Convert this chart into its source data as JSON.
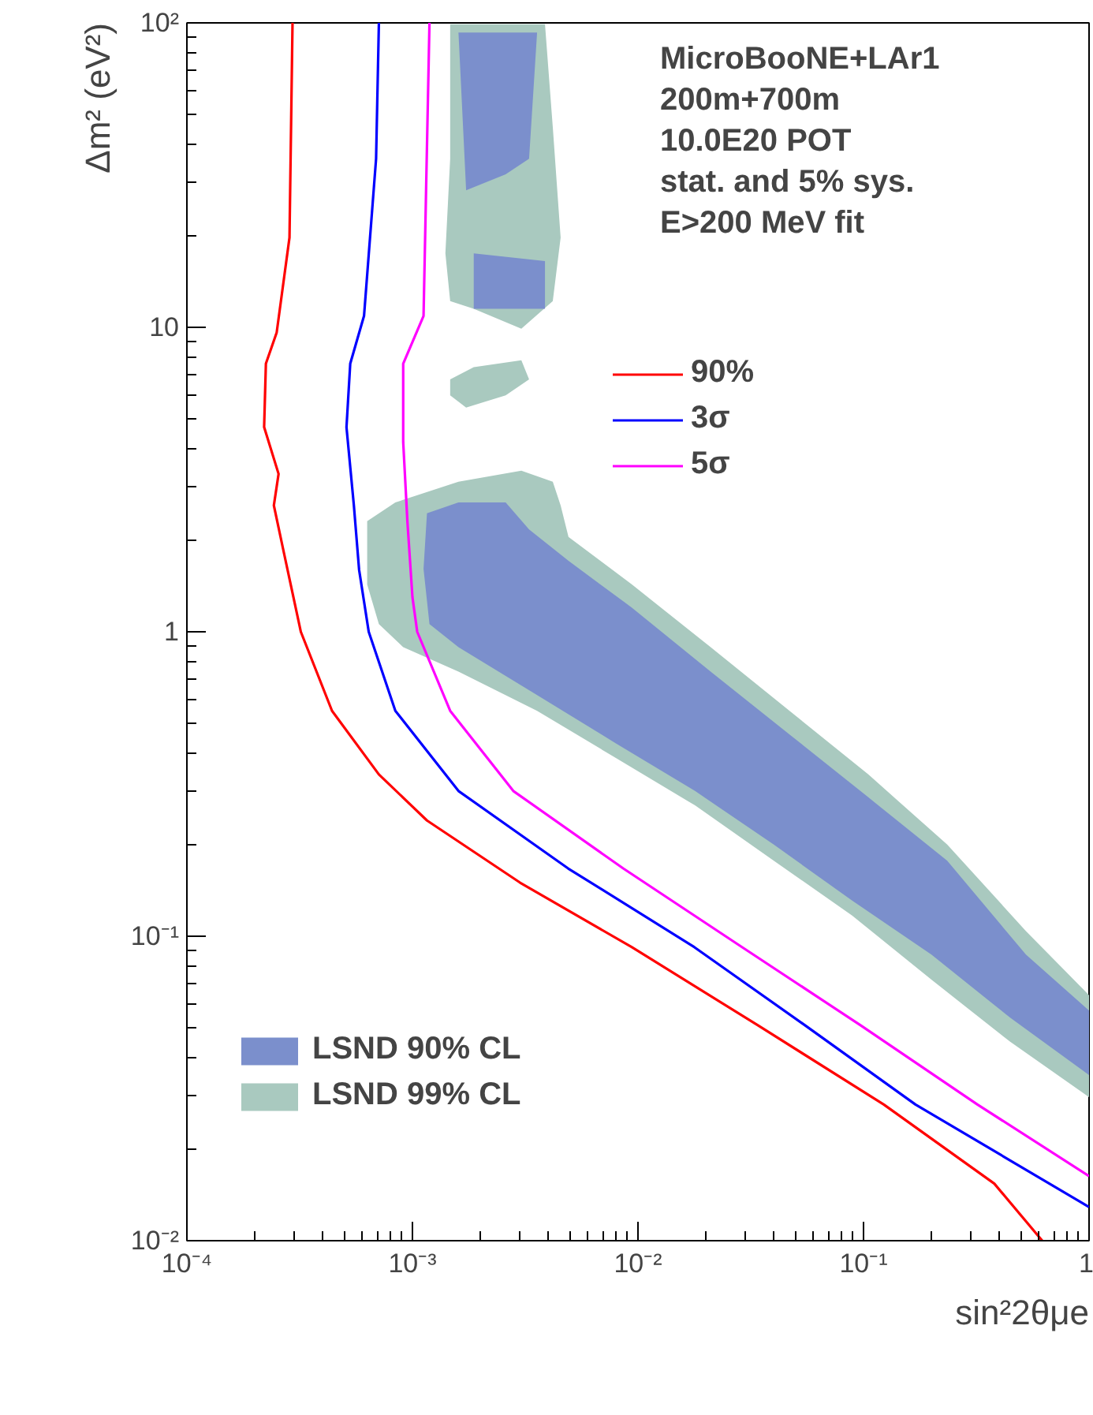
{
  "chart_data": {
    "type": "line",
    "xlabel": "sin²2θμe",
    "ylabel": "Δm² (eV²)",
    "log": "xy",
    "grid": false,
    "legend": "bottom left",
    "xlim": [
      0.0001,
      1
    ],
    "ylim": [
      0.01,
      100
    ],
    "xticks": [
      {
        "value": 0.0001,
        "label": "10⁻⁴"
      },
      {
        "value": 0.001,
        "label": "10⁻³"
      },
      {
        "value": 0.01,
        "label": "10⁻²"
      },
      {
        "value": 0.1,
        "label": "10⁻¹"
      },
      {
        "value": 1,
        "label": "1"
      }
    ],
    "yticks": [
      {
        "value": 0.01,
        "label": "10⁻²"
      },
      {
        "value": 0.1,
        "label": "10⁻¹"
      },
      {
        "value": 1,
        "label": "1"
      },
      {
        "value": 10,
        "label": "10"
      },
      {
        "value": 100,
        "label": "10²"
      }
    ],
    "annotations": [
      "MicroBooNE+LAr1",
      "200m+700m",
      "10.0E20 POT",
      "stat. and 5% sys.",
      "E>200 MeV fit"
    ],
    "series": [
      {
        "type": "area",
        "name": "LSND 99% CL",
        "color": "#a9c9bf",
        "x": [
          0.00063,
          0.00084,
          0.0016,
          0.00304,
          0.00419,
          0.00454,
          0.00492,
          0.0094,
          0.021,
          0.047,
          0.105,
          0.235,
          0.525,
          1,
          1,
          0.447,
          0.2,
          0.089,
          0.04,
          0.0179,
          0.00798,
          0.00357,
          0.0016,
          0.00091,
          0.00071,
          0.00063,
          null,
          0.00147,
          0.00187,
          0.00304,
          0.00329,
          0.00259,
          0.00173,
          0.00147,
          null,
          0.00147,
          0.00387,
          0.00419,
          0.00454,
          0.00419,
          0.00304,
          0.00187,
          0.00147,
          0.0014,
          0.00147
        ],
        "values": [
          2.31,
          2.66,
          3.11,
          3.38,
          3.11,
          2.6,
          2.05,
          1.43,
          0.89,
          0.55,
          0.34,
          0.2,
          0.104,
          0.064,
          0.0296,
          0.045,
          0.072,
          0.117,
          0.177,
          0.269,
          0.385,
          0.55,
          0.74,
          0.89,
          1.06,
          1.43,
          null,
          6.75,
          7.4,
          7.8,
          6.75,
          5.98,
          5.45,
          5.98,
          null,
          99,
          99,
          45.5,
          19.7,
          12.2,
          9.9,
          11.5,
          12.2,
          17.5,
          35.8
        ]
      },
      {
        "type": "area",
        "name": "LSND 90% CL",
        "color": "#7b8fcc",
        "x": [
          0.00116,
          0.0016,
          0.00259,
          0.00329,
          0.00492,
          0.0094,
          0.021,
          0.047,
          0.105,
          0.235,
          0.525,
          1,
          1,
          0.447,
          0.2,
          0.089,
          0.04,
          0.0179,
          0.00798,
          0.00357,
          0.0016,
          0.00119,
          0.00112,
          null,
          0.0016,
          0.00357,
          0.00329,
          0.00259,
          0.00173,
          null,
          0.00187,
          0.00387,
          0.00387,
          0.00187
        ],
        "values": [
          2.45,
          2.66,
          2.66,
          2.17,
          1.71,
          1.2,
          0.74,
          0.46,
          0.286,
          0.177,
          0.087,
          0.057,
          0.035,
          0.054,
          0.087,
          0.131,
          0.2,
          0.3,
          0.43,
          0.62,
          0.89,
          1.06,
          1.61,
          null,
          93,
          93,
          35.8,
          31.8,
          28.2,
          null,
          17.5,
          16.5,
          11.5,
          11.5
        ]
      },
      {
        "name": "90%",
        "color": "#ff0000",
        "x": [
          0.000294,
          0.000285,
          0.00025,
          0.000224,
          0.00022,
          0.000255,
          0.000243,
          0.00027,
          0.00032,
          0.00044,
          0.00071,
          0.00116,
          0.003,
          0.0094,
          0.034,
          0.123,
          0.38,
          0.62
        ],
        "values": [
          100,
          19.7,
          9.6,
          7.6,
          4.7,
          3.3,
          2.6,
          1.8,
          1,
          0.55,
          0.34,
          0.24,
          0.15,
          0.092,
          0.051,
          0.028,
          0.0154,
          0.01
        ]
      },
      {
        "name": "3σ",
        "color": "#0000ff",
        "x": [
          0.00071,
          0.00069,
          0.00061,
          0.00053,
          0.00051,
          0.00055,
          0.00058,
          0.00064,
          0.00084,
          0.0016,
          0.0049,
          0.0178,
          0.055,
          0.17,
          1
        ],
        "values": [
          100,
          35.8,
          10.9,
          7.6,
          4.7,
          2.6,
          1.6,
          1,
          0.55,
          0.3,
          0.167,
          0.092,
          0.051,
          0.028,
          0.0129
        ]
      },
      {
        "name": "5σ",
        "color": "#ff00ff",
        "x": [
          0.00119,
          0.00112,
          0.00091,
          0.00091,
          0.00095,
          0.001,
          0.00105,
          0.00147,
          0.0028,
          0.0086,
          0.029,
          0.097,
          0.32,
          1
        ],
        "values": [
          100,
          10.9,
          7.6,
          4.2,
          2.3,
          1.3,
          1,
          0.55,
          0.3,
          0.167,
          0.092,
          0.051,
          0.028,
          0.0163
        ]
      }
    ]
  }
}
